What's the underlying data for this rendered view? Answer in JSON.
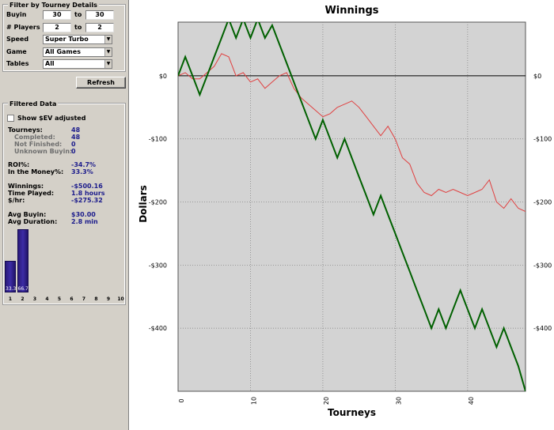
{
  "filter": {
    "title": "Filter by Tourney Details",
    "buyin": {
      "label": "Buyin",
      "from": "30",
      "to_label": "to",
      "to": "30"
    },
    "players": {
      "label": "# Players",
      "from": "2",
      "to_label": "to",
      "to": "2"
    },
    "speed": {
      "label": "Speed",
      "value": "Super Turbo"
    },
    "game": {
      "label": "Game",
      "value": "All Games"
    },
    "tables": {
      "label": "Tables",
      "value": "All"
    },
    "refresh_label": "Refresh"
  },
  "filtered": {
    "title": "Filtered Data",
    "ev_checkbox_label": "Show $EV adjusted",
    "stats": {
      "tourneys_label": "Tourneys:",
      "tourneys": "48",
      "completed_label": "Completed:",
      "completed": "48",
      "not_finished_label": "Not Finished:",
      "not_finished": "0",
      "unknown_label": "Unknown Buyin:",
      "unknown": "0",
      "roi_label": "ROI%:",
      "roi": "-34.7%",
      "itm_label": "In the Money%:",
      "itm": "33.3%",
      "winnings_label": "Winnings:",
      "winnings": "-$500.16",
      "time_label": "Time Played:",
      "time": "1.8  hours",
      "hourly_label": "$/hr:",
      "hourly": "-$275.32",
      "avg_buyin_label": "Avg Buyin:",
      "avg_buyin": "$30.00",
      "avg_duration_label": "Avg Duration:",
      "avg_duration": "2.8  min"
    },
    "finish_chart": {
      "positions": [
        "1",
        "2",
        "3",
        "4",
        "5",
        "6",
        "7",
        "8",
        "9",
        "10"
      ],
      "values": [
        33.3,
        66.7,
        0,
        0,
        0,
        0,
        0,
        0,
        0,
        0
      ],
      "labels": [
        "33.3",
        "66.7"
      ],
      "color": "#3c2ca6"
    }
  },
  "chart_data": {
    "type": "line",
    "title": "Winnings",
    "xlabel": "Tourneys",
    "ylabel": "Dollars",
    "xlim": [
      0,
      48
    ],
    "ylim": [
      -500,
      85
    ],
    "x_ticks": [
      "0",
      "10",
      "20",
      "30",
      "40"
    ],
    "x_tick_values": [
      0,
      10,
      20,
      30,
      40
    ],
    "y_ticks": [
      "$0",
      "-$100",
      "-$200",
      "-$300",
      "-$400"
    ],
    "y_tick_values": [
      0,
      -100,
      -200,
      -300,
      -400
    ],
    "grid": true,
    "background": "#d3d3d3",
    "zero_line_color": "#000000",
    "series": [
      {
        "color": "#006000",
        "values": [
          0,
          30,
          0,
          -30,
          0,
          30,
          60,
          90,
          60,
          90,
          60,
          90,
          60,
          80,
          50,
          20,
          -10,
          -40,
          -70,
          -100,
          -70,
          -100,
          -130,
          -100,
          -130,
          -160,
          -190,
          -220,
          -190,
          -220,
          -250,
          -280,
          -310,
          -340,
          -370,
          -400,
          -370,
          -400,
          -370,
          -340,
          -370,
          -400,
          -370,
          -400,
          -430,
          -400,
          -430,
          -460,
          -500
        ]
      },
      {
        "color": "#e04040",
        "values": [
          0,
          5,
          -5,
          -5,
          5,
          15,
          35,
          30,
          0,
          5,
          -10,
          -5,
          -20,
          -10,
          0,
          5,
          -20,
          -35,
          -45,
          -55,
          -65,
          -60,
          -50,
          -45,
          -40,
          -50,
          -65,
          -80,
          -95,
          -80,
          -100,
          -130,
          -140,
          -170,
          -185,
          -190,
          -180,
          -185,
          -180,
          -185,
          -190,
          -185,
          -180,
          -165,
          -200,
          -210,
          -195,
          -210,
          -215
        ]
      }
    ]
  }
}
